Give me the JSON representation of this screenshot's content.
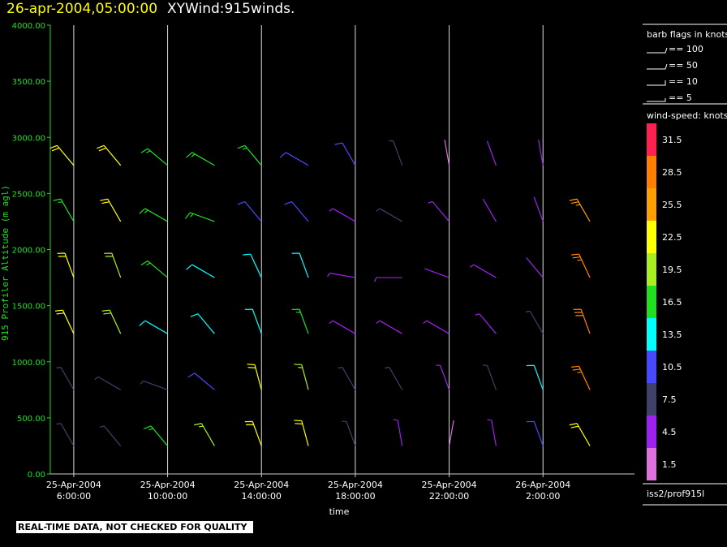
{
  "chart_data": {
    "type": "barb",
    "title": "26-apr-2004,05:00:00",
    "subtitle": "XYWind:915winds.",
    "x_label": "time",
    "y_label": "915 Profiler Altitude (m agl)",
    "note": "REAL-TIME DATA, NOT CHECKED FOR QUALITY",
    "source": "iss2/prof915l",
    "xlim": [
      5,
      29.9
    ],
    "xticks": [
      {
        "value": 6,
        "label": "25-Apr-2004\n6:00:00"
      },
      {
        "value": 10,
        "label": "25-Apr-2004\n10:00:00"
      },
      {
        "value": 14,
        "label": "25-Apr-2004\n14:00:00"
      },
      {
        "value": 18,
        "label": "25-Apr-2004\n18:00:00"
      },
      {
        "value": 22,
        "label": "25-Apr-2004\n22:00:00"
      },
      {
        "value": 26,
        "label": "26-Apr-2004\n2:00:00"
      }
    ],
    "ylim": [
      0,
      4000
    ],
    "yticks": [
      {
        "value": 0,
        "label": "0.00"
      },
      {
        "value": 500,
        "label": "500.00"
      },
      {
        "value": 1000,
        "label": "1000.00"
      },
      {
        "value": 1500,
        "label": "1500.00"
      },
      {
        "value": 2000,
        "label": "2000.00"
      },
      {
        "value": 2500,
        "label": "2500.00"
      },
      {
        "value": 3000,
        "label": "3000.00"
      },
      {
        "value": 3500,
        "label": "3500.00"
      },
      {
        "value": 4000,
        "label": "4000.00"
      }
    ],
    "grid": true,
    "flag_legend": {
      "title": "barb flags in knots",
      "items": [
        "== 100",
        "== 50",
        "== 10",
        "== 5"
      ]
    },
    "colorbar": {
      "title": "wind-speed: knots",
      "levels": [
        1.5,
        4.5,
        7.5,
        10.5,
        13.5,
        16.5,
        19.5,
        22.5,
        25.5,
        28.5,
        31.5
      ],
      "colors": [
        "#e070e0",
        "#a020f0",
        "#404068",
        "#4848ff",
        "#00ffff",
        "#20e020",
        "#a8f020",
        "#ffff00",
        "#ffa000",
        "#ff8000",
        "#ff2050"
      ]
    },
    "columns": [
      {
        "x": 6,
        "heights": [
          250,
          750,
          1250,
          1750,
          2250,
          2750
        ],
        "speed": [
          9,
          9,
          22,
          23,
          18,
          22
        ],
        "dir": [
          330,
          330,
          335,
          340,
          330,
          320
        ]
      },
      {
        "x": 8,
        "heights": [
          250,
          750,
          1250,
          1750,
          2250,
          2750
        ],
        "speed": [
          9,
          7,
          20,
          20,
          22,
          24
        ],
        "dir": [
          320,
          300,
          335,
          340,
          330,
          320
        ]
      },
      {
        "x": 10,
        "heights": [
          250,
          750,
          1250,
          1750,
          2250,
          2750
        ],
        "speed": [
          18,
          8,
          14,
          16,
          18,
          16
        ],
        "dir": [
          320,
          290,
          300,
          310,
          300,
          310
        ]
      },
      {
        "x": 12,
        "heights": [
          250,
          750,
          1250,
          1750,
          2250,
          2750
        ],
        "speed": [
          19,
          12,
          14,
          14,
          17,
          18
        ],
        "dir": [
          330,
          310,
          320,
          300,
          290,
          300
        ]
      },
      {
        "x": 14,
        "heights": [
          250,
          750,
          1250,
          1750,
          2250,
          2750
        ],
        "speed": [
          24,
          22,
          14,
          13,
          11,
          18
        ],
        "dir": [
          340,
          345,
          340,
          335,
          320,
          320
        ]
      },
      {
        "x": 16,
        "heights": [
          250,
          750,
          1250,
          1750,
          2250,
          2750
        ],
        "speed": [
          22,
          19,
          17,
          14,
          10,
          12
        ],
        "dir": [
          345,
          345,
          340,
          340,
          320,
          300
        ]
      },
      {
        "x": 18,
        "heights": [
          250,
          750,
          1250,
          1750,
          2250,
          2750
        ],
        "speed": [
          9,
          9,
          6,
          5,
          5,
          10
        ],
        "dir": [
          340,
          330,
          300,
          280,
          300,
          330
        ]
      },
      {
        "x": 20,
        "heights": [
          250,
          750,
          1250,
          1750,
          2250,
          2750
        ],
        "speed": [
          5,
          9,
          5,
          5,
          7,
          9
        ],
        "dir": [
          350,
          330,
          300,
          270,
          300,
          340
        ]
      },
      {
        "x": 22,
        "heights": [
          250,
          750,
          1250,
          1750,
          2250,
          2750
        ],
        "speed": [
          3,
          5,
          5,
          4,
          5,
          3
        ],
        "dir": [
          10,
          340,
          300,
          290,
          320,
          350
        ]
      },
      {
        "x": 24,
        "heights": [
          250,
          750,
          1250,
          1750,
          2250,
          2750
        ],
        "speed": [
          6,
          7,
          5,
          5,
          4,
          4
        ],
        "dir": [
          350,
          340,
          320,
          300,
          330,
          340
        ]
      },
      {
        "x": 26,
        "heights": [
          250,
          750,
          1250,
          1750,
          2250,
          2750
        ],
        "speed": [
          12,
          14,
          8,
          4,
          4,
          4
        ],
        "dir": [
          340,
          340,
          330,
          320,
          340,
          350
        ]
      },
      {
        "x": 28,
        "heights": [
          250,
          750,
          1250,
          1750,
          2250
        ],
        "speed": [
          22,
          29,
          30,
          28,
          26
        ],
        "dir": [
          330,
          335,
          340,
          335,
          330
        ]
      }
    ]
  }
}
